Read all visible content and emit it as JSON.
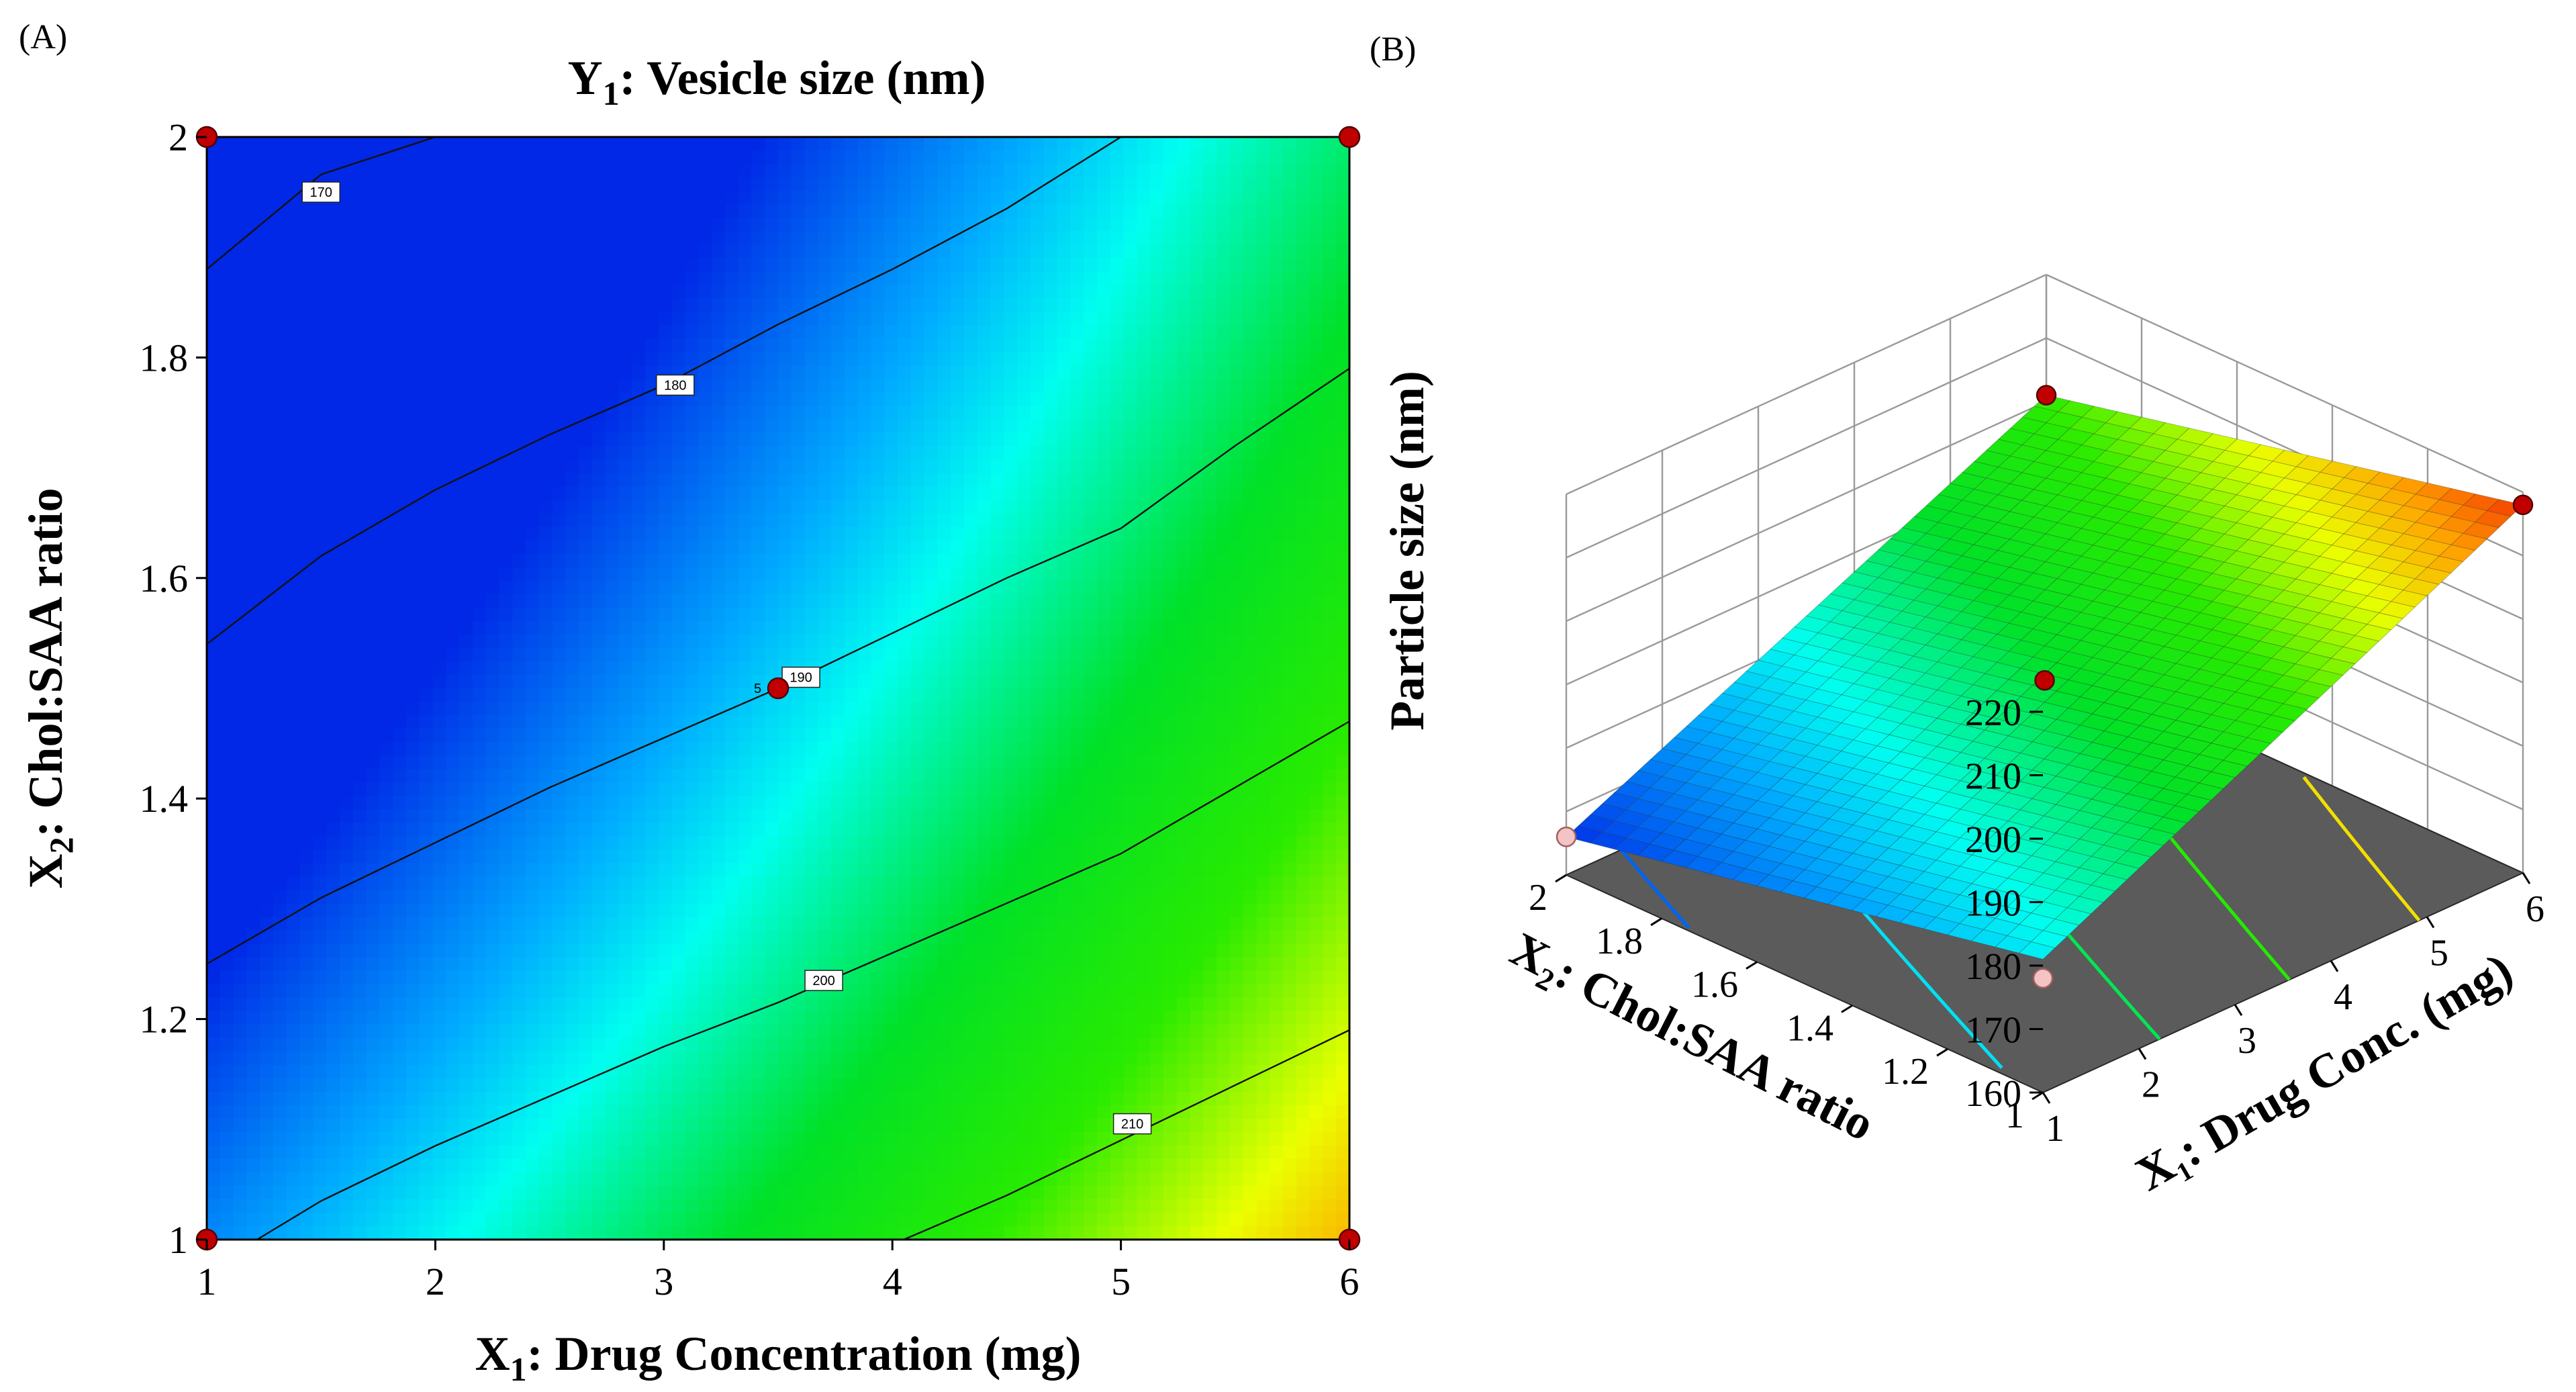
{
  "panels": {
    "a": {
      "letter": "(A)"
    },
    "b": {
      "letter": "(B)"
    }
  },
  "chart_data": [
    {
      "type": "contour",
      "title": {
        "main": "Y",
        "sub": "1",
        "rest": ": Vesicle size (nm)"
      },
      "xlabel": {
        "main": "X",
        "sub": "1",
        "rest": ": Drug Concentration (mg)"
      },
      "ylabel": {
        "main": "X",
        "sub": "2",
        "rest": ": Chol:SAA ratio"
      },
      "xlim": [
        1,
        6
      ],
      "ylim": [
        1,
        2
      ],
      "x_ticks": [
        "1",
        "2",
        "3",
        "4",
        "5",
        "6"
      ],
      "y_ticks": [
        "1",
        "1.2",
        "1.4",
        "1.6",
        "1.8",
        "2"
      ],
      "color_range": [
        165,
        219
      ],
      "contour_levels": [
        {
          "value": 170,
          "label": "170",
          "label_at": [
            1.5,
            1.95
          ]
        },
        {
          "value": 180,
          "label": "180",
          "label_at": [
            3.05,
            1.775
          ]
        },
        {
          "value": 190,
          "label": "190",
          "label_at": [
            3.6,
            1.51
          ]
        },
        {
          "value": 200,
          "label": "200",
          "label_at": [
            3.7,
            1.235
          ]
        },
        {
          "value": 210,
          "label": "210",
          "label_at": [
            5.05,
            1.105
          ]
        }
      ],
      "contour_paths": [
        [
          [
            1,
            1.88
          ],
          [
            1.5,
            1.966
          ],
          [
            2,
            2.0
          ]
        ],
        [
          [
            1,
            1.54
          ],
          [
            1.5,
            1.62
          ],
          [
            2,
            1.68
          ],
          [
            2.5,
            1.73
          ],
          [
            3,
            1.775
          ],
          [
            3.5,
            1.83
          ],
          [
            4,
            1.88
          ],
          [
            4.5,
            1.935
          ],
          [
            5,
            2.0
          ]
        ],
        [
          [
            1,
            1.25
          ],
          [
            1.5,
            1.31
          ],
          [
            2,
            1.36
          ],
          [
            2.5,
            1.41
          ],
          [
            3,
            1.455
          ],
          [
            3.5,
            1.5
          ],
          [
            4,
            1.55
          ],
          [
            4.5,
            1.6
          ],
          [
            5,
            1.645
          ],
          [
            5.5,
            1.72
          ],
          [
            6,
            1.79
          ]
        ],
        [
          [
            1.22,
            1.0
          ],
          [
            1.5,
            1.035
          ],
          [
            2,
            1.085
          ],
          [
            2.5,
            1.13
          ],
          [
            3,
            1.175
          ],
          [
            3.5,
            1.215
          ],
          [
            4,
            1.26
          ],
          [
            4.5,
            1.305
          ],
          [
            5,
            1.35
          ],
          [
            5.5,
            1.41
          ],
          [
            6,
            1.47
          ]
        ],
        [
          [
            4.05,
            1.0
          ],
          [
            4.5,
            1.04
          ],
          [
            5,
            1.09
          ],
          [
            5.5,
            1.14
          ],
          [
            6,
            1.19
          ]
        ]
      ],
      "design_points": [
        {
          "x": 1,
          "y": 2,
          "label": ""
        },
        {
          "x": 6,
          "y": 2,
          "label": ""
        },
        {
          "x": 1,
          "y": 1,
          "label": ""
        },
        {
          "x": 6,
          "y": 1,
          "label": ""
        },
        {
          "x": 3.5,
          "y": 1.5,
          "label": "5"
        }
      ]
    },
    {
      "type": "surface3d",
      "zlabel": "Particle size (nm)",
      "xlabel": {
        "main": "X",
        "sub": "1",
        "rest": ": Drug Conc. (mg)"
      },
      "ylabel": {
        "main": "X",
        "sub": "2",
        "rest": ": Chol:SAA ratio"
      },
      "xlim": [
        1,
        6
      ],
      "ylim": [
        1,
        2
      ],
      "zlim": [
        160,
        220
      ],
      "z_ticks": [
        "160",
        "170",
        "180",
        "190",
        "200",
        "210",
        "220"
      ],
      "x_ticks": [
        "1",
        "2",
        "3",
        "4",
        "5",
        "6"
      ],
      "y_ticks": [
        "1",
        "1.2",
        "1.4",
        "1.6",
        "1.8",
        "2"
      ],
      "corner_values": [
        {
          "x": 1,
          "y": 2,
          "z": 166
        },
        {
          "x": 6,
          "y": 2,
          "z": 201
        },
        {
          "x": 1,
          "y": 1,
          "z": 181
        },
        {
          "x": 6,
          "y": 1,
          "z": 218
        }
      ],
      "design_points": [
        {
          "x": 1,
          "y": 2,
          "z": 166,
          "above": false
        },
        {
          "x": 6,
          "y": 2,
          "z": 201,
          "above": true
        },
        {
          "x": 1,
          "y": 1,
          "z": 178,
          "above": false
        },
        {
          "x": 6,
          "y": 1,
          "z": 218,
          "above": true
        },
        {
          "x": 3.5,
          "y": 1.5,
          "z": 190.5,
          "above": true
        }
      ],
      "floor_contours": [
        170,
        180,
        190,
        200,
        210
      ]
    }
  ]
}
